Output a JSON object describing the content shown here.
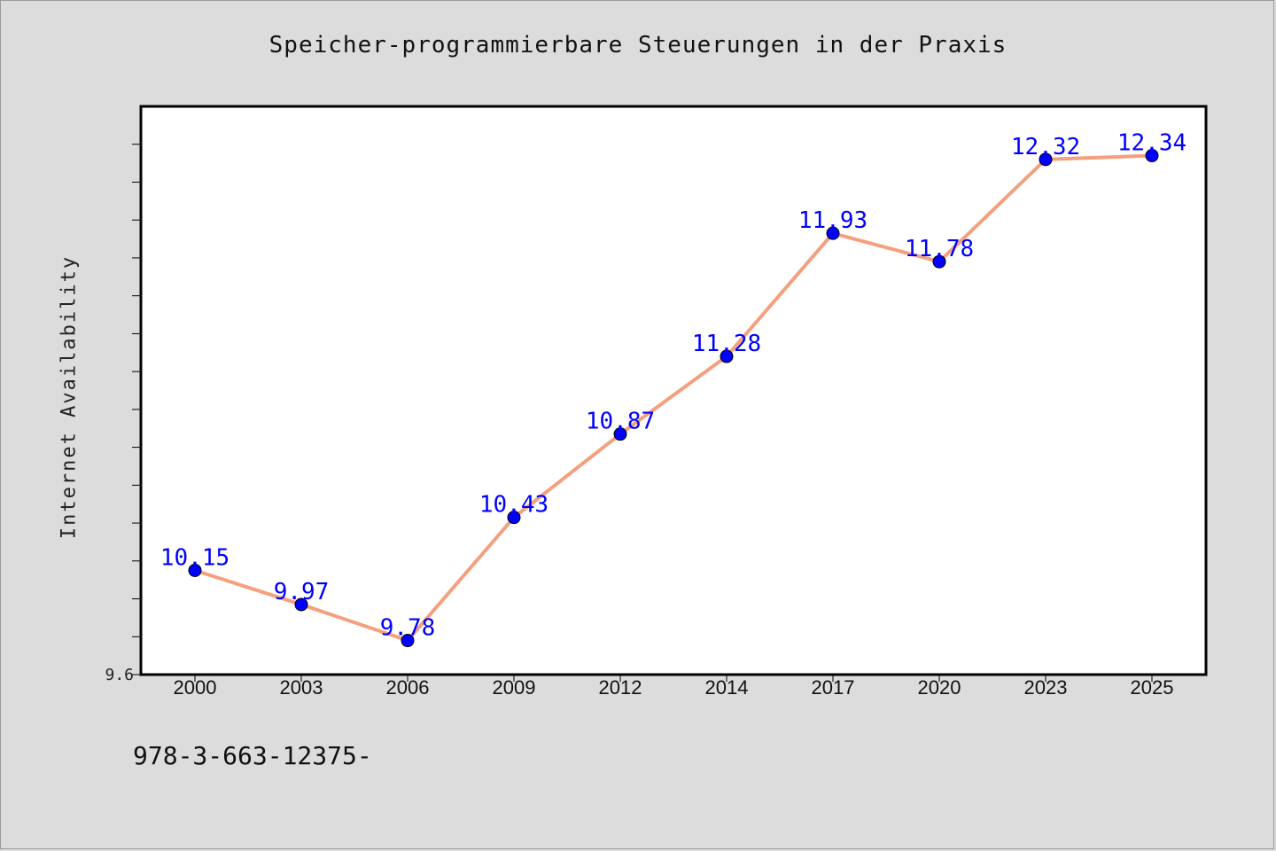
{
  "chart_data": {
    "type": "line",
    "title": "Speicher-programmierbare Steuerungen in der Praxis",
    "xlabel": "",
    "ylabel": "Internet Availability",
    "categories": [
      "2000",
      "2003",
      "2006",
      "2009",
      "2012",
      "2014",
      "2017",
      "2020",
      "2023",
      "2025"
    ],
    "series": [
      {
        "values": [
          10.15,
          9.97,
          9.78,
          10.43,
          10.87,
          11.28,
          11.93,
          11.78,
          12.32,
          12.34
        ],
        "data_labels": [
          "10.15",
          "9.97",
          "9.78",
          "10.43",
          "10.87",
          "11.28",
          "11.93",
          "11.78",
          "12.32",
          "12.34"
        ]
      }
    ],
    "ylim": [
      9.6,
      12.6
    ],
    "y_tick_labels": [
      "9.6"
    ],
    "grid": false,
    "legend": "none",
    "colors": {
      "line": "#f4a07e",
      "marker": "#0000ff",
      "data_label": "#0000ff",
      "plot_background": "#ffffff",
      "page_background": "#dcdcdc"
    }
  },
  "footer": {
    "code": "978-3-663-12375-"
  }
}
